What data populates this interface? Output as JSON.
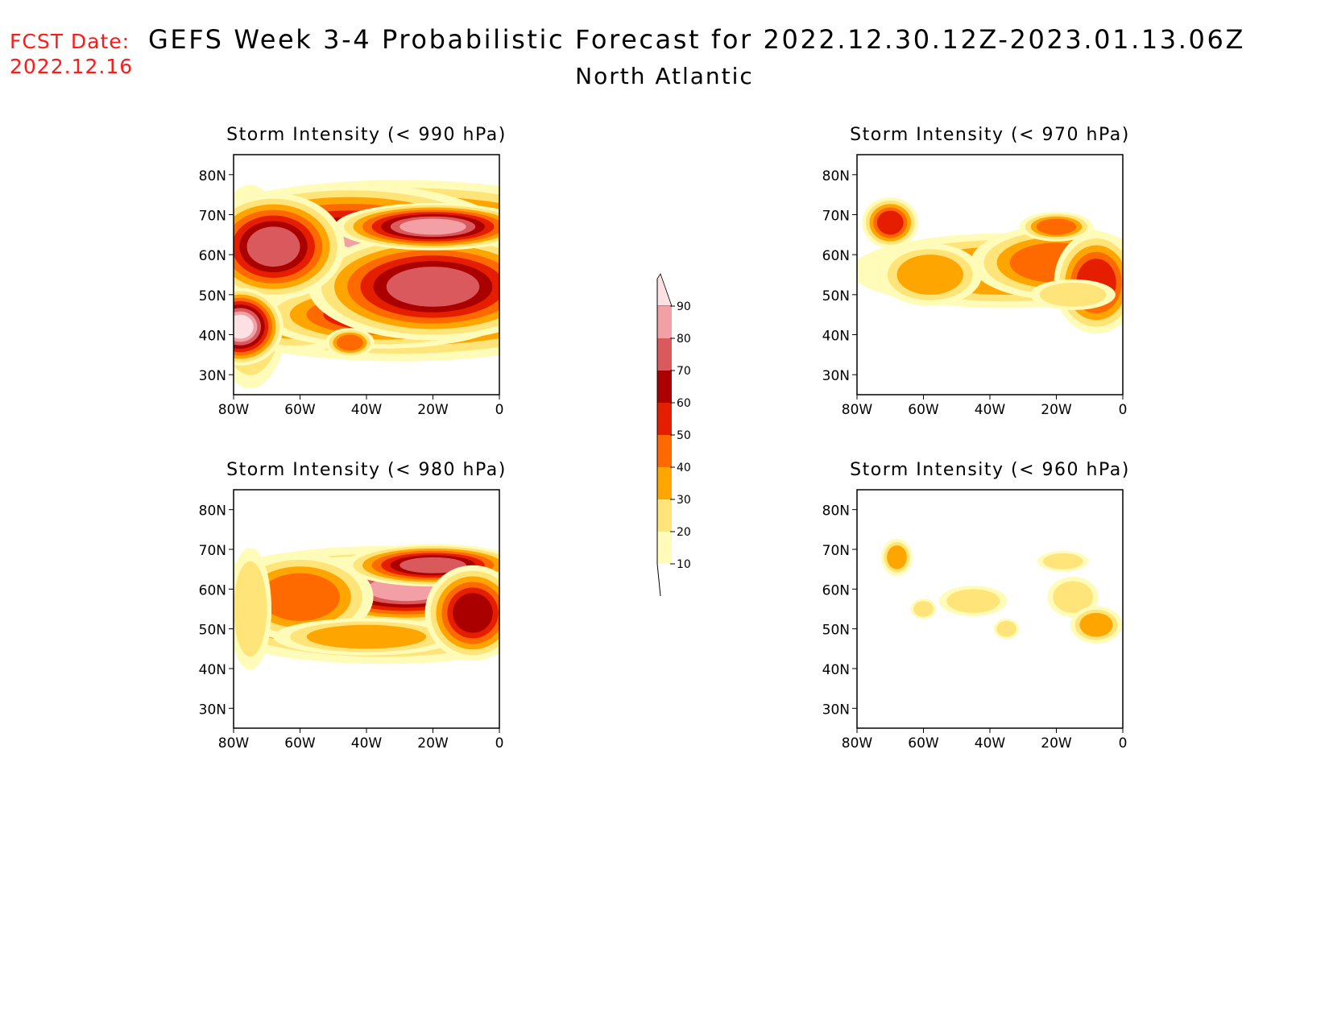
{
  "header": {
    "fcst_label": "FCST Date:",
    "fcst_date": "2022.12.16",
    "title": "GEFS Week 3-4 Probabilistic Forecast for 2022.12.30.12Z-2023.01.13.06Z",
    "subtitle": "North Atlantic"
  },
  "axes": {
    "lat_ticks": [
      "80N",
      "70N",
      "60N",
      "50N",
      "40N",
      "30N"
    ],
    "lat_values": [
      80,
      70,
      60,
      50,
      40,
      30
    ],
    "lon_ticks": [
      "80W",
      "60W",
      "40W",
      "20W",
      "0"
    ],
    "lon_values": [
      -80,
      -60,
      -40,
      -20,
      0
    ],
    "lat_range": [
      25,
      85
    ],
    "lon_range": [
      -80,
      0
    ]
  },
  "colorbar": {
    "levels": [
      "10",
      "20",
      "30",
      "40",
      "50",
      "60",
      "70",
      "80",
      "90"
    ],
    "colors": [
      "#fffbb8",
      "#ffe47a",
      "#ffa500",
      "#ff6a00",
      "#e61e00",
      "#aa0000",
      "#d9595c",
      "#f2a0a5",
      "#fde0e4"
    ]
  },
  "panels": [
    {
      "title": "Storm Intensity (< 990 hPa)",
      "blobs": [
        {
          "lon": -30,
          "lat": 56,
          "rx": 26,
          "ry": 7,
          "level": 8
        },
        {
          "lon": -45,
          "lat": 60,
          "rx": 18,
          "ry": 6,
          "level": 7
        },
        {
          "lon": -75,
          "lat": 52,
          "rx": 6,
          "ry": 12,
          "level": 4
        },
        {
          "lon": -62,
          "lat": 50,
          "rx": 12,
          "ry": 6,
          "level": 5
        },
        {
          "lon": -35,
          "lat": 45,
          "rx": 18,
          "ry": 4,
          "level": 4
        },
        {
          "lon": -20,
          "lat": 52,
          "rx": 14,
          "ry": 5,
          "level": 6
        },
        {
          "lon": -68,
          "lat": 62,
          "rx": 8,
          "ry": 5,
          "level": 6
        },
        {
          "lon": -20,
          "lat": 67,
          "rx": 10,
          "ry": 2,
          "level": 7
        },
        {
          "lon": -45,
          "lat": 38,
          "rx": 4,
          "ry": 2,
          "level": 3
        },
        {
          "lon": -78,
          "lat": 42,
          "rx": 4,
          "ry": 3,
          "level": 8
        }
      ]
    },
    {
      "title": "Storm Intensity (< 970 hPa)",
      "blobs": [
        {
          "lon": -35,
          "lat": 56,
          "rx": 30,
          "ry": 6,
          "level": 2
        },
        {
          "lon": -20,
          "lat": 58,
          "rx": 14,
          "ry": 5,
          "level": 3
        },
        {
          "lon": -58,
          "lat": 55,
          "rx": 10,
          "ry": 5,
          "level": 2
        },
        {
          "lon": -8,
          "lat": 53,
          "rx": 6,
          "ry": 6,
          "level": 4
        },
        {
          "lon": -70,
          "lat": 68,
          "rx": 4,
          "ry": 3,
          "level": 4
        },
        {
          "lon": -20,
          "lat": 67,
          "rx": 6,
          "ry": 2,
          "level": 3
        },
        {
          "lon": -15,
          "lat": 50,
          "rx": 10,
          "ry": 3,
          "level": 1
        }
      ]
    },
    {
      "title": "Storm Intensity (< 980 hPa)",
      "blobs": [
        {
          "lon": -35,
          "lat": 56,
          "rx": 30,
          "ry": 7,
          "level": 4
        },
        {
          "lon": -35,
          "lat": 55,
          "rx": 22,
          "ry": 5,
          "level": 6
        },
        {
          "lon": -28,
          "lat": 60,
          "rx": 12,
          "ry": 3,
          "level": 7
        },
        {
          "lon": -60,
          "lat": 58,
          "rx": 12,
          "ry": 6,
          "level": 3
        },
        {
          "lon": -40,
          "lat": 48,
          "rx": 18,
          "ry": 3,
          "level": 2
        },
        {
          "lon": -75,
          "lat": 55,
          "rx": 5,
          "ry": 12,
          "level": 1
        },
        {
          "lon": -20,
          "lat": 66,
          "rx": 10,
          "ry": 2,
          "level": 6
        },
        {
          "lon": -8,
          "lat": 54,
          "rx": 6,
          "ry": 5,
          "level": 5
        }
      ]
    },
    {
      "title": "Storm Intensity (< 960 hPa)",
      "blobs": [
        {
          "lon": -68,
          "lat": 68,
          "rx": 3,
          "ry": 3,
          "level": 2
        },
        {
          "lon": -60,
          "lat": 55,
          "rx": 3,
          "ry": 2,
          "level": 1
        },
        {
          "lon": -45,
          "lat": 57,
          "rx": 8,
          "ry": 3,
          "level": 1
        },
        {
          "lon": -15,
          "lat": 58,
          "rx": 6,
          "ry": 4,
          "level": 1
        },
        {
          "lon": -8,
          "lat": 51,
          "rx": 5,
          "ry": 3,
          "level": 2
        },
        {
          "lon": -35,
          "lat": 50,
          "rx": 3,
          "ry": 2,
          "level": 1
        },
        {
          "lon": -18,
          "lat": 67,
          "rx": 6,
          "ry": 2,
          "level": 1
        }
      ]
    }
  ]
}
